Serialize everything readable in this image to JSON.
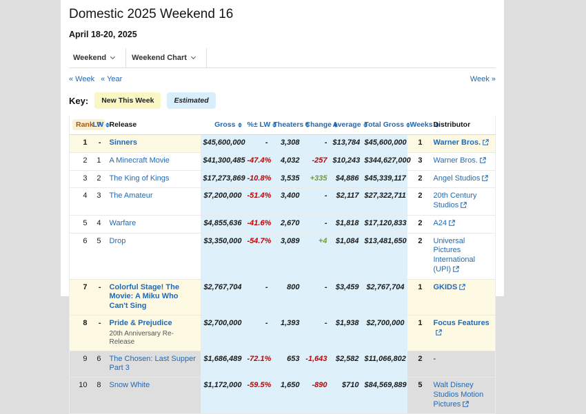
{
  "page": {
    "title": "Domestic 2025 Weekend 16",
    "date_range": "April 18-20, 2025"
  },
  "tabs": [
    {
      "label": "Weekend"
    },
    {
      "label": "Weekend Chart"
    }
  ],
  "nav": {
    "prev_week": "« Week",
    "prev_year": "« Year",
    "next_week": "Week »"
  },
  "key": {
    "label": "Key:",
    "badges": [
      {
        "label": "New This Week",
        "type": "new"
      },
      {
        "label": "Estimated",
        "type": "estimated"
      }
    ]
  },
  "colors": {
    "link_blue": "#2269b3",
    "negative_red": "#c40000",
    "positive_green": "#6e9e2f",
    "new_row_bg": "#fdf9e3",
    "estimated_bg": "#def0f9",
    "new_badge_bg": "#fbf7c5",
    "estimated_badge_bg": "#d9eefb",
    "sorted_header_text": "#b45309"
  },
  "table": {
    "headers": [
      {
        "label": "Rank",
        "sortable": true,
        "sorted": true
      },
      {
        "label": "LW",
        "sortable": true
      },
      {
        "label": "Release",
        "sortable": false
      },
      {
        "label": "Gross",
        "sortable": true
      },
      {
        "label": "%± LW",
        "sortable": true
      },
      {
        "label": "Theaters",
        "sortable": true
      },
      {
        "label": "Change",
        "sortable": true
      },
      {
        "label": "Average",
        "sortable": true
      },
      {
        "label": "Total Gross",
        "sortable": true
      },
      {
        "label": "Weeks",
        "sortable": true
      },
      {
        "label": "Distributor",
        "sortable": false
      }
    ],
    "rows": [
      {
        "rank": "1",
        "lw": "-",
        "release": "Sinners",
        "subtitle": "",
        "gross": "$45,600,000",
        "pct_lw": "-",
        "theaters": "3,308",
        "change": "-",
        "average": "$13,784",
        "total_gross": "$45,600,000",
        "weeks": "1",
        "distributor": "Warner Bros.",
        "dist_link": true,
        "new": true
      },
      {
        "rank": "2",
        "lw": "1",
        "release": "A Minecraft Movie",
        "subtitle": "",
        "gross": "$41,300,485",
        "pct_lw": "-47.4%",
        "theaters": "4,032",
        "change": "-257",
        "average": "$10,243",
        "total_gross": "$344,627,000",
        "weeks": "3",
        "distributor": "Warner Bros.",
        "dist_link": true,
        "new": false
      },
      {
        "rank": "3",
        "lw": "2",
        "release": "The King of Kings",
        "subtitle": "",
        "gross": "$17,273,869",
        "pct_lw": "-10.8%",
        "theaters": "3,535",
        "change": "+335",
        "average": "$4,886",
        "total_gross": "$45,339,117",
        "weeks": "2",
        "distributor": "Angel Studios",
        "dist_link": true,
        "new": false
      },
      {
        "rank": "4",
        "lw": "3",
        "release": "The Amateur",
        "subtitle": "",
        "gross": "$7,200,000",
        "pct_lw": "-51.4%",
        "theaters": "3,400",
        "change": "-",
        "average": "$2,117",
        "total_gross": "$27,322,711",
        "weeks": "2",
        "distributor": "20th Century Studios",
        "dist_link": true,
        "new": false
      },
      {
        "rank": "5",
        "lw": "4",
        "release": "Warfare",
        "subtitle": "",
        "gross": "$4,855,636",
        "pct_lw": "-41.6%",
        "theaters": "2,670",
        "change": "-",
        "average": "$1,818",
        "total_gross": "$17,120,833",
        "weeks": "2",
        "distributor": "A24",
        "dist_link": true,
        "new": false
      },
      {
        "rank": "6",
        "lw": "5",
        "release": "Drop",
        "subtitle": "",
        "gross": "$3,350,000",
        "pct_lw": "-54.7%",
        "theaters": "3,089",
        "change": "+4",
        "average": "$1,084",
        "total_gross": "$13,481,650",
        "weeks": "2",
        "distributor": "Universal Pictures International (UPI)",
        "dist_link": true,
        "new": false
      },
      {
        "rank": "7",
        "lw": "-",
        "release": "Colorful Stage! The Movie: A Miku Who Can't Sing",
        "subtitle": "",
        "gross": "$2,767,704",
        "pct_lw": "-",
        "theaters": "800",
        "change": "-",
        "average": "$3,459",
        "total_gross": "$2,767,704",
        "weeks": "1",
        "distributor": "GKIDS",
        "dist_link": true,
        "new": true
      },
      {
        "rank": "8",
        "lw": "-",
        "release": "Pride & Prejudice",
        "subtitle": "20th Anniversary Re-Release",
        "gross": "$2,700,000",
        "pct_lw": "-",
        "theaters": "1,393",
        "change": "-",
        "average": "$1,938",
        "total_gross": "$2,700,000",
        "weeks": "1",
        "distributor": "Focus Features",
        "dist_link": true,
        "new": true
      },
      {
        "rank": "9",
        "lw": "6",
        "release": "The Chosen: Last Supper Part 3",
        "subtitle": "",
        "gross": "$1,686,489",
        "pct_lw": "-72.1%",
        "theaters": "653",
        "change": "-1,643",
        "average": "$2,582",
        "total_gross": "$11,066,802",
        "weeks": "2",
        "distributor": "-",
        "dist_link": false,
        "new": false
      },
      {
        "rank": "10",
        "lw": "8",
        "release": "Snow White",
        "subtitle": "",
        "gross": "$1,172,000",
        "pct_lw": "-59.5%",
        "theaters": "1,650",
        "change": "-890",
        "average": "$710",
        "total_gross": "$84,569,889",
        "weeks": "5",
        "distributor": "Walt Disney Studios Motion Pictures",
        "dist_link": true,
        "new": false
      }
    ]
  }
}
